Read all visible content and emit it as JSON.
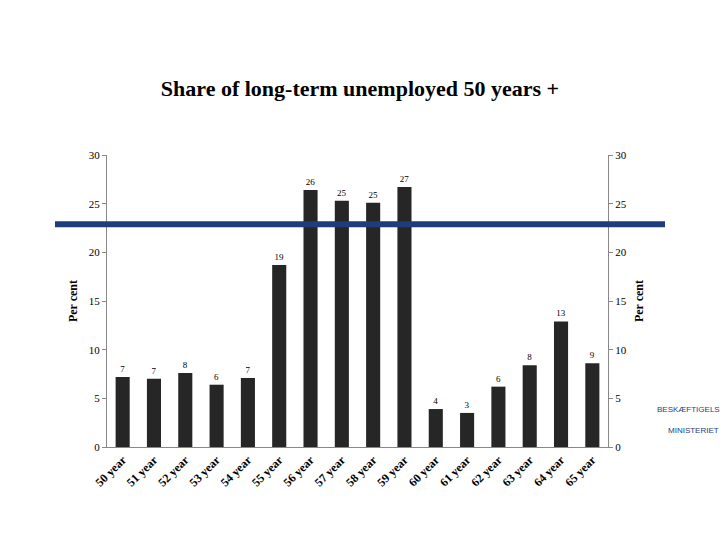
{
  "chart_data": {
    "type": "bar",
    "title": "Share of long-term unemployed 50 years +",
    "categories": [
      "50 year",
      "51 year",
      "52 year",
      "53 year",
      "54 year",
      "55 year",
      "56 year",
      "57 year",
      "58 year",
      "59 year",
      "60 year",
      "61 year",
      "62 year",
      "63 year",
      "64 year",
      "65 year"
    ],
    "values": [
      7.2,
      7.0,
      7.6,
      6.4,
      7.1,
      18.7,
      26.4,
      25.3,
      25.1,
      26.7,
      3.9,
      3.5,
      6.2,
      8.4,
      12.9,
      8.6
    ],
    "value_labels": [
      "7",
      "7",
      "8",
      "6",
      "7",
      "19",
      "26",
      "25",
      "25",
      "27",
      "4",
      "3",
      "6",
      "8",
      "13",
      "9"
    ],
    "color": "#262626",
    "y_label": "Per cent",
    "y2_label": "Per cent",
    "ylim": [
      0,
      30
    ],
    "yticks": [
      0,
      5,
      10,
      15,
      20,
      25,
      30
    ],
    "y2lim": [
      0,
      30
    ],
    "y2ticks": [
      0,
      5,
      10,
      15,
      20,
      25,
      30
    ],
    "data_labels": true,
    "grid": false,
    "annotations": [
      "BESKÆFTIGELSES",
      "MINISTERIET"
    ]
  }
}
